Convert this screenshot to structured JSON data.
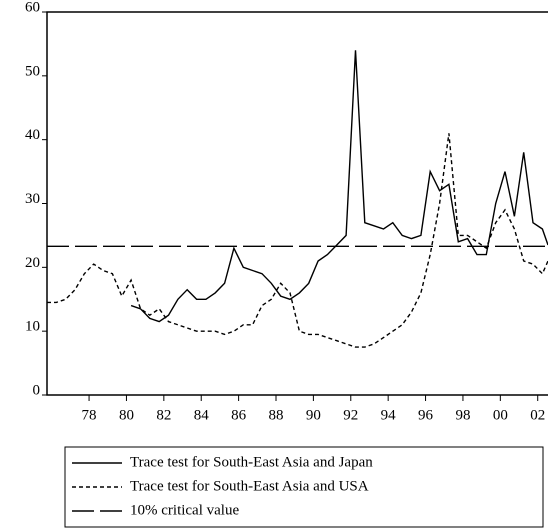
{
  "chart_data": {
    "type": "line",
    "x": [
      1975.75,
      1976.25,
      1976.75,
      1977.25,
      1977.75,
      1978.25,
      1978.75,
      1979.25,
      1979.75,
      1980.25,
      1980.75,
      1981.25,
      1981.75,
      1982.25,
      1982.75,
      1983.25,
      1983.75,
      1984.25,
      1984.75,
      1985.25,
      1985.75,
      1986.25,
      1986.75,
      1987.25,
      1987.75,
      1988.25,
      1988.75,
      1989.25,
      1989.75,
      1990.25,
      1990.75,
      1991.25,
      1991.75,
      1992.25,
      1992.75,
      1993.25,
      1993.75,
      1994.25,
      1994.75,
      1995.25,
      1995.75,
      1996.25,
      1996.75,
      1997.25,
      1997.75,
      1998.25,
      1998.75,
      1999.25,
      1999.75,
      2000.25,
      2000.75,
      2001.25,
      2001.75,
      2002.25,
      2002.55
    ],
    "series": [
      {
        "name": "Trace test for South-East Asia and Japan",
        "color": "#000000",
        "dash": "none",
        "values": [
          null,
          null,
          null,
          null,
          null,
          null,
          null,
          null,
          null,
          14,
          13.5,
          12,
          11.5,
          12.5,
          15,
          16.5,
          15,
          15,
          16,
          17.5,
          23,
          20,
          19.5,
          19,
          17.5,
          15.5,
          15,
          16,
          17.5,
          21,
          22,
          23.5,
          25,
          54,
          27,
          26.5,
          26,
          27,
          25,
          24.5,
          25,
          35,
          32,
          33,
          24,
          24.5,
          22,
          22,
          30,
          35,
          28,
          38,
          27,
          26,
          23.5
        ]
      },
      {
        "name": "Trace test for South-East Asia and USA",
        "color": "#000000",
        "dash": "4,3",
        "values": [
          14.5,
          14.5,
          15,
          16.5,
          19,
          20.5,
          19.5,
          19,
          15.5,
          18,
          13.5,
          12.5,
          13.5,
          11.5,
          11,
          10.5,
          10,
          10,
          10,
          9.5,
          10,
          11,
          11,
          14,
          15,
          17.5,
          16,
          10,
          9.5,
          9.5,
          9,
          8.5,
          8,
          7.5,
          7.5,
          8,
          9,
          10,
          11,
          13,
          16,
          22,
          30,
          41,
          25,
          25,
          24,
          23,
          27,
          29,
          26,
          21,
          20.5,
          19,
          21
        ]
      },
      {
        "name": "10% critical value",
        "color": "#000000",
        "dash": "22,6",
        "values": [
          23.3,
          23.3,
          23.3,
          23.3,
          23.3,
          23.3,
          23.3,
          23.3,
          23.3,
          23.3,
          23.3,
          23.3,
          23.3,
          23.3,
          23.3,
          23.3,
          23.3,
          23.3,
          23.3,
          23.3,
          23.3,
          23.3,
          23.3,
          23.3,
          23.3,
          23.3,
          23.3,
          23.3,
          23.3,
          23.3,
          23.3,
          23.3,
          23.3,
          23.3,
          23.3,
          23.3,
          23.3,
          23.3,
          23.3,
          23.3,
          23.3,
          23.3,
          23.3,
          23.3,
          23.3,
          23.3,
          23.3,
          23.3,
          23.3,
          23.3,
          23.3,
          23.3,
          23.3,
          23.3,
          23.3
        ]
      }
    ],
    "xlim": [
      1975.75,
      2002.55
    ],
    "xticks": [
      {
        "value": 1978,
        "label": "78"
      },
      {
        "value": 1980,
        "label": "80"
      },
      {
        "value": 1982,
        "label": "82"
      },
      {
        "value": 1984,
        "label": "84"
      },
      {
        "value": 1986,
        "label": "86"
      },
      {
        "value": 1988,
        "label": "88"
      },
      {
        "value": 1990,
        "label": "90"
      },
      {
        "value": 1992,
        "label": "92"
      },
      {
        "value": 1994,
        "label": "94"
      },
      {
        "value": 1996,
        "label": "96"
      },
      {
        "value": 1998,
        "label": "98"
      },
      {
        "value": 2000,
        "label": "00"
      },
      {
        "value": 2002,
        "label": "02"
      }
    ],
    "ylim": [
      0,
      60
    ],
    "yticks": [
      0,
      10,
      20,
      30,
      40,
      50,
      60
    ],
    "legend": "bottom"
  }
}
